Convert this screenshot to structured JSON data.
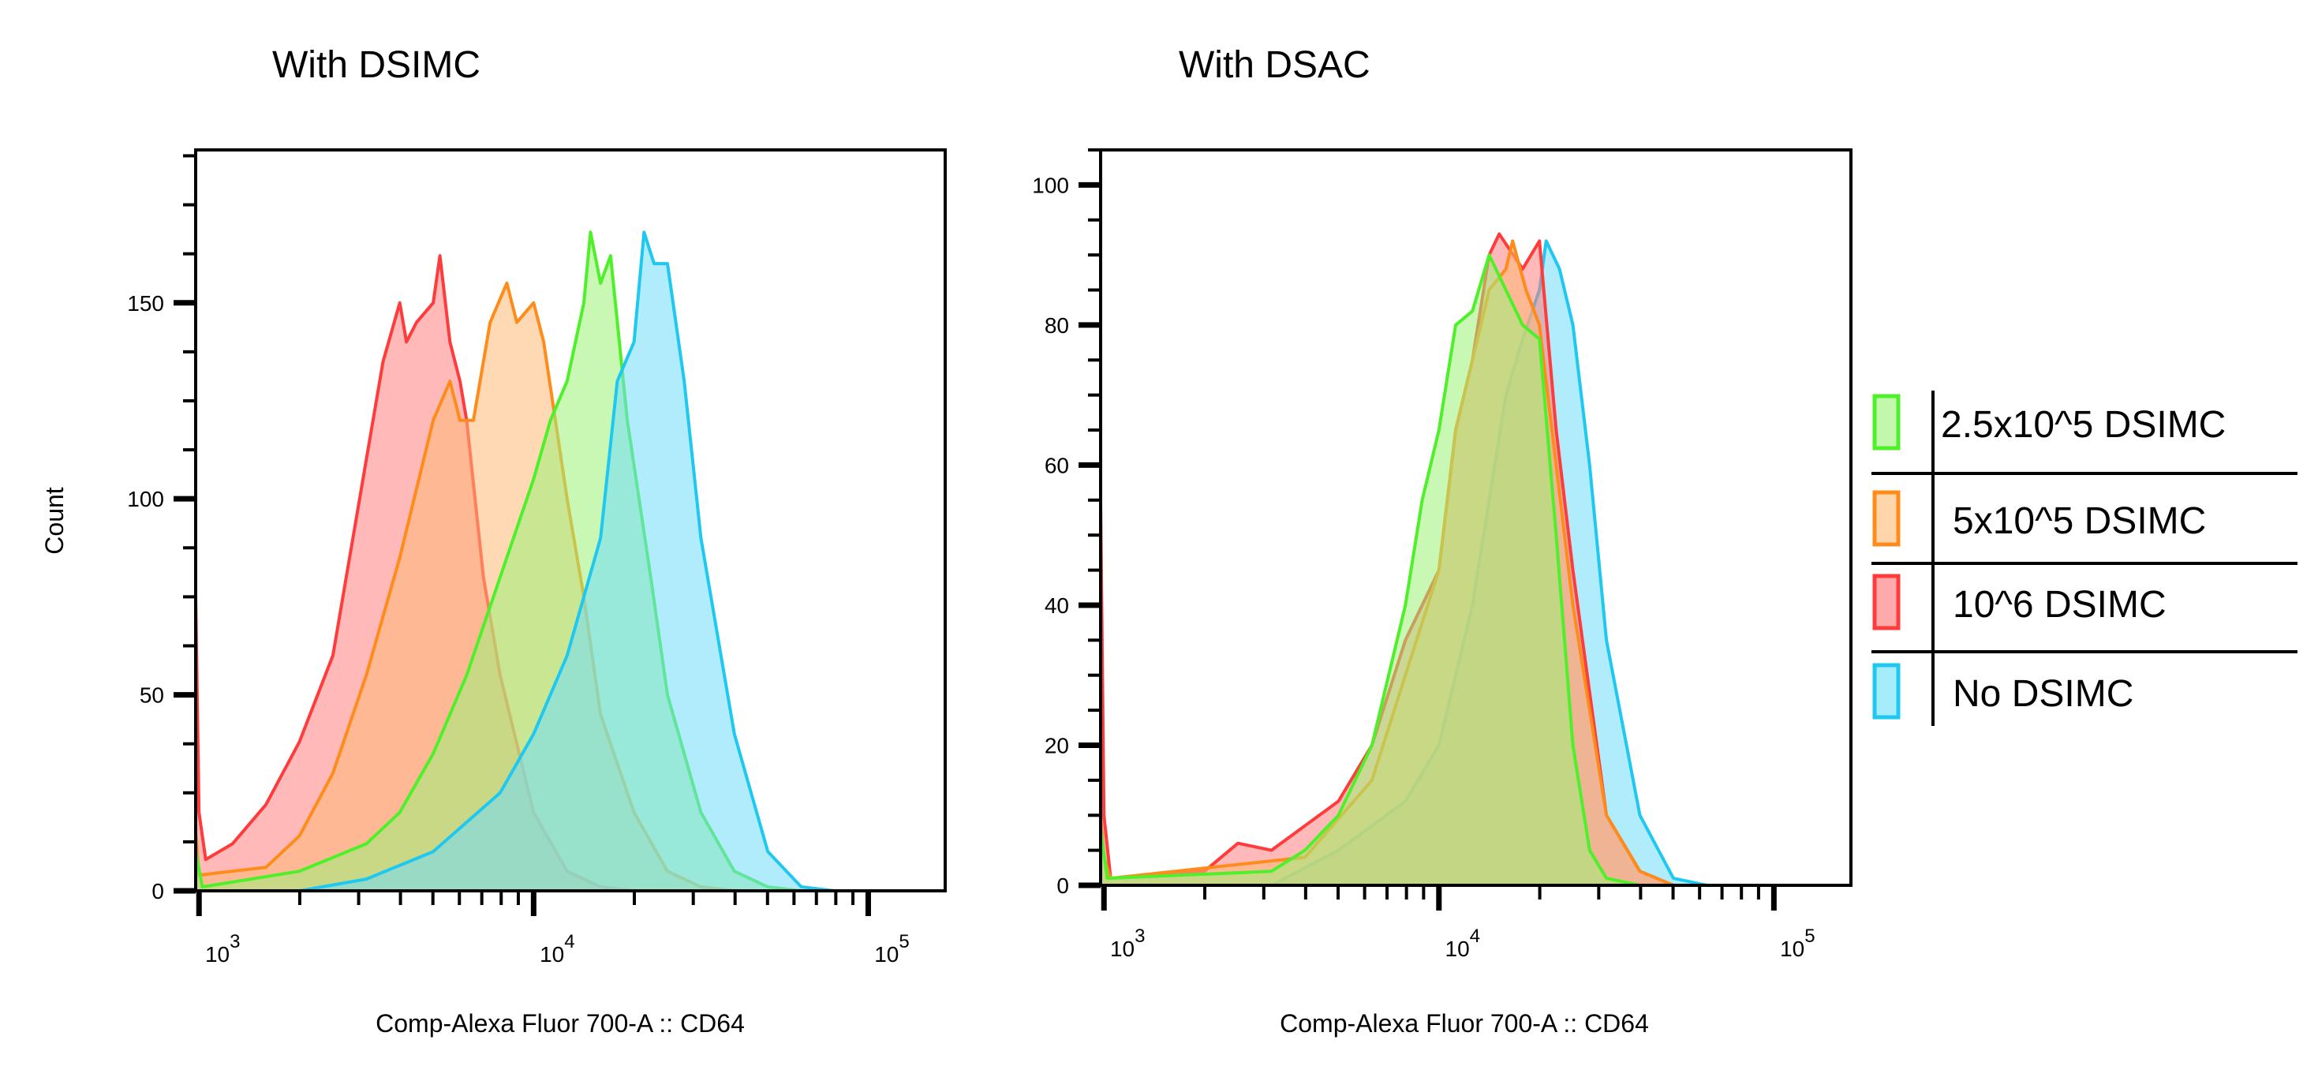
{
  "chart_data": [
    {
      "type": "area",
      "title": "With DSIMC",
      "xlabel": "Comp-Alexa Fluor 700-A :: CD64",
      "ylabel": "Count",
      "xscale": "log",
      "xlim_log10": [
        2.99,
        5.23
      ],
      "ylim": [
        0,
        189
      ],
      "yticks_major": [
        0,
        50,
        100,
        150
      ],
      "yticks_minor_step": 12.5,
      "xticks": [
        {
          "exp": 3,
          "label_base": "10",
          "label_exp": "3"
        },
        {
          "exp": 4,
          "label_base": "10",
          "label_exp": "4"
        },
        {
          "exp": 5,
          "label_base": "10",
          "label_exp": "5"
        }
      ],
      "series": [
        {
          "name": "10^6 DSIMC",
          "color": "#ff3b3b",
          "fill": "#ff7f7f",
          "x": [
            2.99,
            3.0,
            3.02,
            3.1,
            3.2,
            3.3,
            3.4,
            3.45,
            3.5,
            3.55,
            3.6,
            3.62,
            3.65,
            3.7,
            3.72,
            3.75,
            3.78,
            3.8,
            3.85,
            3.9,
            4.0,
            4.1,
            4.2,
            4.3
          ],
          "y": [
            75,
            20,
            8,
            12,
            22,
            38,
            60,
            85,
            110,
            135,
            150,
            140,
            145,
            150,
            162,
            140,
            130,
            120,
            80,
            55,
            20,
            5,
            1,
            0
          ]
        },
        {
          "name": "5x10^5 DSIMC",
          "color": "#ff8c1a",
          "fill": "#ffb877",
          "x": [
            2.99,
            3.0,
            3.2,
            3.3,
            3.4,
            3.5,
            3.6,
            3.7,
            3.75,
            3.78,
            3.82,
            3.87,
            3.92,
            3.95,
            4.0,
            4.03,
            4.1,
            4.15,
            4.2,
            4.3,
            4.4,
            4.5,
            4.6
          ],
          "y": [
            15,
            4,
            6,
            14,
            30,
            55,
            85,
            120,
            130,
            120,
            120,
            145,
            155,
            145,
            150,
            140,
            100,
            75,
            45,
            20,
            5,
            1,
            0
          ]
        },
        {
          "name": "2.5x10^5 DSIMC",
          "color": "#4ef02a",
          "fill": "#9cf279",
          "x": [
            2.99,
            3.01,
            3.3,
            3.5,
            3.6,
            3.7,
            3.8,
            3.9,
            4.0,
            4.05,
            4.1,
            4.15,
            4.17,
            4.2,
            4.23,
            4.28,
            4.35,
            4.4,
            4.5,
            4.6,
            4.7,
            4.8
          ],
          "y": [
            10,
            1,
            5,
            12,
            20,
            35,
            55,
            80,
            105,
            120,
            130,
            150,
            168,
            155,
            162,
            120,
            80,
            50,
            20,
            5,
            1,
            0
          ]
        },
        {
          "name": "No DSIMC",
          "color": "#1ec8f0",
          "fill": "#6fdcf7",
          "x": [
            3.3,
            3.5,
            3.7,
            3.9,
            4.0,
            4.1,
            4.2,
            4.25,
            4.3,
            4.33,
            4.36,
            4.4,
            4.45,
            4.5,
            4.6,
            4.7,
            4.8,
            4.9
          ],
          "y": [
            0,
            3,
            10,
            25,
            40,
            60,
            90,
            130,
            140,
            168,
            160,
            160,
            130,
            90,
            40,
            10,
            1,
            0
          ]
        }
      ]
    },
    {
      "type": "area",
      "title": "With DSAC",
      "xlabel": "Comp-Alexa Fluor 700-A :: CD64",
      "ylabel": "",
      "xscale": "log",
      "xlim_log10": [
        2.99,
        5.23
      ],
      "ylim": [
        0,
        105
      ],
      "yticks_major": [
        0,
        20,
        40,
        60,
        80,
        100
      ],
      "yticks_minor_step": 5,
      "xticks": [
        {
          "exp": 3,
          "label_base": "10",
          "label_exp": "3"
        },
        {
          "exp": 4,
          "label_base": "10",
          "label_exp": "4"
        },
        {
          "exp": 5,
          "label_base": "10",
          "label_exp": "5"
        }
      ],
      "series": [
        {
          "name": "No DSIMC",
          "color": "#1ec8f0",
          "fill": "#6fdcf7",
          "x": [
            3.5,
            3.7,
            3.9,
            4.0,
            4.1,
            4.2,
            4.25,
            4.3,
            4.32,
            4.36,
            4.4,
            4.45,
            4.5,
            4.6,
            4.7,
            4.8
          ],
          "y": [
            0,
            5,
            12,
            20,
            40,
            70,
            78,
            85,
            92,
            88,
            80,
            60,
            35,
            10,
            1,
            0
          ]
        },
        {
          "name": "10^6 DSIMC",
          "color": "#ff3b3b",
          "fill": "#ff7f7f",
          "x": [
            2.99,
            3.0,
            3.02,
            3.3,
            3.4,
            3.5,
            3.7,
            3.8,
            3.9,
            4.0,
            4.05,
            4.1,
            4.15,
            4.18,
            4.25,
            4.3,
            4.35,
            4.4,
            4.5,
            4.6,
            4.7
          ],
          "y": [
            55,
            10,
            1,
            2,
            6,
            5,
            12,
            20,
            35,
            45,
            65,
            75,
            90,
            93,
            88,
            92,
            65,
            45,
            10,
            2,
            0
          ]
        },
        {
          "name": "5x10^5 DSIMC",
          "color": "#ff8c1a",
          "fill": "#ffb877",
          "x": [
            2.99,
            3.0,
            3.02,
            3.6,
            3.8,
            3.9,
            4.0,
            4.05,
            4.1,
            4.15,
            4.2,
            4.22,
            4.26,
            4.3,
            4.35,
            4.4,
            4.5,
            4.6,
            4.7
          ],
          "y": [
            10,
            4,
            1,
            4,
            15,
            30,
            45,
            65,
            75,
            85,
            88,
            92,
            85,
            80,
            60,
            40,
            10,
            2,
            0
          ]
        },
        {
          "name": "2.5x10^5 DSIMC",
          "color": "#4ef02a",
          "fill": "#9cf279",
          "x": [
            2.99,
            3.01,
            3.5,
            3.6,
            3.7,
            3.8,
            3.9,
            3.95,
            4.0,
            4.05,
            4.1,
            4.15,
            4.2,
            4.25,
            4.3,
            4.35,
            4.4,
            4.45,
            4.5,
            4.6
          ],
          "y": [
            8,
            1,
            2,
            5,
            10,
            20,
            40,
            55,
            65,
            80,
            82,
            90,
            85,
            80,
            78,
            50,
            20,
            5,
            1,
            0
          ]
        }
      ]
    }
  ],
  "legend": {
    "items": [
      {
        "label": "2.5x10^5 DSIMC",
        "color": "#4ef02a",
        "fill": "#c3f7ae"
      },
      {
        "label": "5x10^5 DSIMC",
        "color": "#ff8c1a",
        "fill": "#ffd5ac"
      },
      {
        "label": "10^6 DSIMC",
        "color": "#ff3b3b",
        "fill": "#ffaaaa"
      },
      {
        "label": "No DSIMC",
        "color": "#1ec8f0",
        "fill": "#a6ecfb"
      }
    ]
  }
}
